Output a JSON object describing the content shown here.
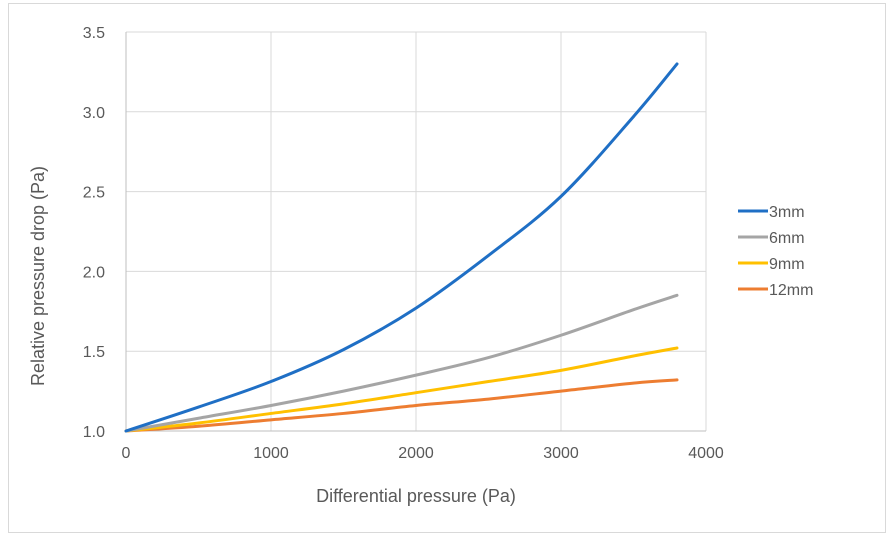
{
  "chart_data": {
    "type": "line",
    "title": "",
    "xlabel": "Differential pressure (Pa)",
    "ylabel": "Relative pressure drop (Pa)",
    "xlim": [
      0,
      4000
    ],
    "ylim": [
      1.0,
      3.5
    ],
    "xticks": [
      "0",
      "1000",
      "2000",
      "3000",
      "4000"
    ],
    "yticks": [
      "1.0",
      "1.5",
      "2.0",
      "2.5",
      "3.0",
      "3.5"
    ],
    "grid": "vertical-and-horizontal",
    "legend_position": "right",
    "x": [
      0,
      500,
      1000,
      1500,
      2000,
      2500,
      3000,
      3500,
      3800
    ],
    "series": [
      {
        "name": "3mm",
        "color": "#1f6fc5",
        "values": [
          1.0,
          1.15,
          1.31,
          1.51,
          1.77,
          2.1,
          2.47,
          2.97,
          3.3
        ]
      },
      {
        "name": "6mm",
        "color": "#a5a5a5",
        "values": [
          1.0,
          1.08,
          1.16,
          1.25,
          1.35,
          1.46,
          1.6,
          1.76,
          1.85
        ]
      },
      {
        "name": "9mm",
        "color": "#ffc000",
        "values": [
          1.0,
          1.05,
          1.11,
          1.17,
          1.24,
          1.31,
          1.38,
          1.47,
          1.52
        ]
      },
      {
        "name": "12mm",
        "color": "#ed7d31",
        "values": [
          1.0,
          1.03,
          1.07,
          1.11,
          1.16,
          1.2,
          1.25,
          1.3,
          1.32
        ]
      }
    ]
  }
}
